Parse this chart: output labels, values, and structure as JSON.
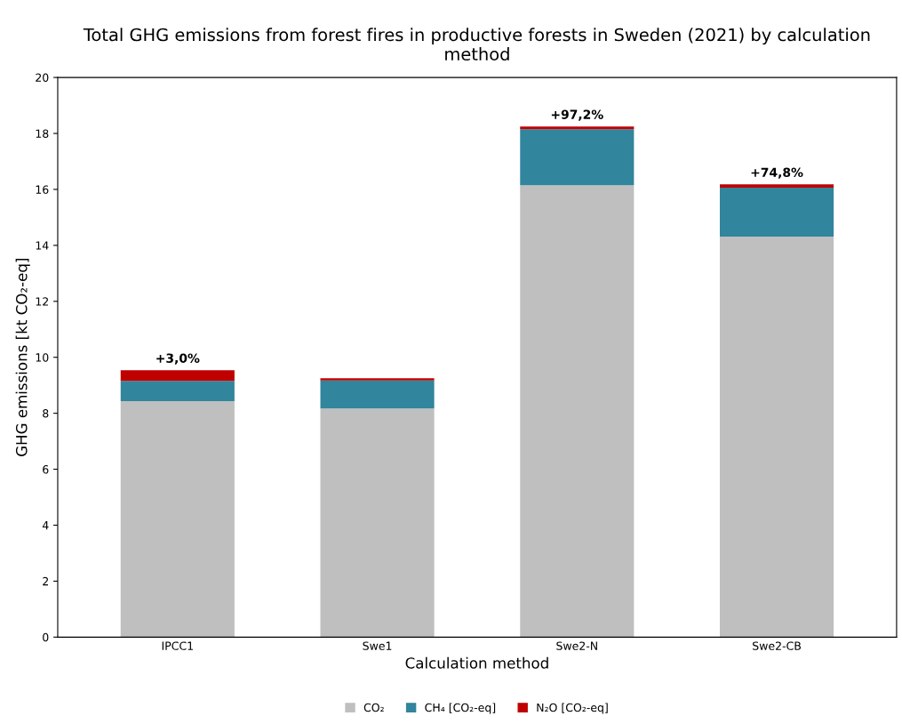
{
  "chart_data": {
    "type": "bar",
    "title": "Total GHG emissions from forest fires in productive forests in Sweden (2021) by calculation method",
    "xlabel": "Calculation method",
    "ylabel": "GHG emissions [kt CO₂-eq]",
    "categories": [
      "IPCC1",
      "Swe1",
      "Swe2-N",
      "Swe2-CB"
    ],
    "stacked": true,
    "series": [
      {
        "name": "CO₂",
        "color": "#bfbfbf",
        "values": [
          8.43,
          8.17,
          16.15,
          14.31
        ]
      },
      {
        "name": "CH₄ [CO₂-eq]",
        "color": "#31859c",
        "values": [
          0.73,
          1.0,
          2.0,
          1.75
        ]
      },
      {
        "name": "N₂O [CO₂-eq]",
        "color": "#c00000",
        "values": [
          0.38,
          0.08,
          0.1,
          0.12
        ]
      }
    ],
    "annotations": [
      {
        "text": "+3,0%",
        "x": "IPCC1",
        "y": 9.54
      },
      {
        "text": "+97,2%",
        "x": "Swe2-N",
        "y": 18.25
      },
      {
        "text": "+74,8%",
        "x": "Swe2-CB",
        "y": 16.18
      }
    ],
    "ylim": [
      0,
      20
    ],
    "yticks": [
      0,
      2,
      4,
      6,
      8,
      10,
      12,
      14,
      16,
      18,
      20
    ],
    "grid": false,
    "legend": "bottom"
  }
}
